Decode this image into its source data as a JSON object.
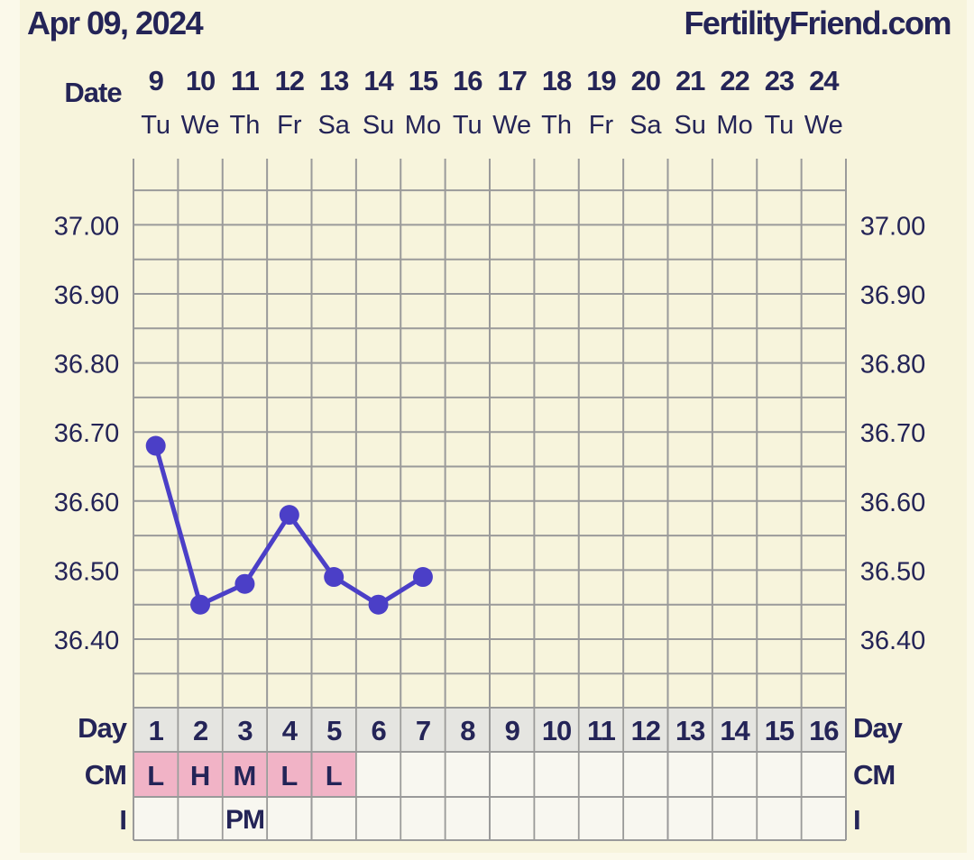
{
  "header": {
    "date": "Apr 09, 2024",
    "site": "FertilityFriend.com"
  },
  "colors": {
    "background": "#f7f4dc",
    "grid_line": "#9a9a9a",
    "text": "#242457",
    "temp_line": "#4b3fc7",
    "cm_cell": "#f1b3c6",
    "day_row": "#e5e5e1",
    "empty_cell": "#f8f7f0"
  },
  "chart_data": {
    "type": "line",
    "title": "",
    "date_label": "Date",
    "dates": [
      "9",
      "10",
      "11",
      "12",
      "13",
      "14",
      "15",
      "16",
      "17",
      "18",
      "19",
      "20",
      "21",
      "22",
      "23",
      "24"
    ],
    "weekdays": [
      "Tu",
      "We",
      "Th",
      "Fr",
      "Sa",
      "Su",
      "Mo",
      "Tu",
      "We",
      "Th",
      "Fr",
      "Sa",
      "Su",
      "Mo",
      "Tu",
      "We"
    ],
    "day_label": "Day",
    "cycle_days": [
      "1",
      "2",
      "3",
      "4",
      "5",
      "6",
      "7",
      "8",
      "9",
      "10",
      "11",
      "12",
      "13",
      "14",
      "15",
      "16"
    ],
    "y_tick_labels": [
      "37.00",
      "36.90",
      "36.80",
      "36.70",
      "36.60",
      "36.50",
      "36.40"
    ],
    "y_ticks": [
      37.0,
      36.9,
      36.8,
      36.7,
      36.6,
      36.5,
      36.4
    ],
    "ylim": [
      36.33,
      37.09
    ],
    "y_grid_step": 0.05,
    "grid": true,
    "temperatures": [
      36.68,
      36.45,
      36.48,
      36.58,
      36.49,
      36.45,
      36.49
    ],
    "cm_label": "CM",
    "cm": [
      "L",
      "H",
      "M",
      "L",
      "L",
      "",
      "",
      "",
      "",
      "",
      "",
      "",
      "",
      "",
      "",
      ""
    ],
    "i_label": "I",
    "intercourse": [
      "",
      "",
      "PM",
      "",
      "",
      "",
      "",
      "",
      "",
      "",
      "",
      "",
      "",
      "",
      "",
      ""
    ]
  }
}
